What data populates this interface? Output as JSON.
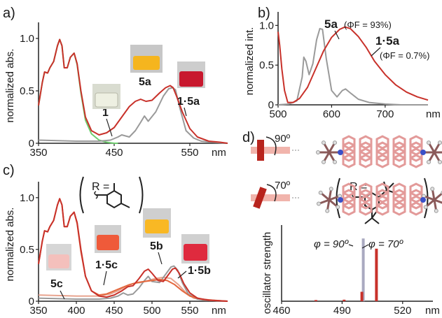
{
  "chart_data": [
    {
      "panel": "a)",
      "type": "line",
      "xlabel": "nm",
      "ylabel": "normalized abs.",
      "xlim": [
        350,
        600
      ],
      "ylim": [
        0,
        1.1
      ],
      "xticks": [
        "350",
        "450",
        "550"
      ],
      "yticks": [
        "0",
        "0.5",
        "1.0"
      ],
      "labels": [
        "1",
        "5a",
        "1·5a"
      ],
      "series": [
        {
          "name": "1",
          "color": "#6dcc6d",
          "x": [
            350,
            355,
            358,
            362,
            365,
            370,
            375,
            378,
            381,
            384,
            388,
            392,
            397,
            401,
            406,
            412,
            420,
            430,
            440,
            450,
            455
          ],
          "y": [
            0.36,
            0.58,
            0.68,
            0.67,
            0.72,
            0.78,
            0.93,
            0.99,
            0.93,
            0.72,
            0.72,
            0.82,
            0.86,
            0.75,
            0.48,
            0.22,
            0.09,
            0.03,
            0.01,
            0.0,
            0.0
          ]
        },
        {
          "name": "5a",
          "color": "#9a9a9a",
          "x": [
            350,
            400,
            430,
            445,
            455,
            460,
            465,
            470,
            478,
            485,
            490,
            495,
            505,
            515,
            522,
            527,
            531,
            537,
            545,
            555,
            565,
            580,
            600
          ],
          "y": [
            0.03,
            0.02,
            0.02,
            0.03,
            0.06,
            0.08,
            0.07,
            0.06,
            0.12,
            0.2,
            0.26,
            0.21,
            0.3,
            0.45,
            0.52,
            0.53,
            0.51,
            0.33,
            0.12,
            0.05,
            0.02,
            0.01,
            0.0
          ]
        },
        {
          "name": "1·5a",
          "color": "#c8312a",
          "x": [
            350,
            355,
            358,
            362,
            365,
            370,
            375,
            378,
            381,
            384,
            388,
            392,
            397,
            401,
            406,
            412,
            420,
            430,
            440,
            450,
            460,
            470,
            478,
            485,
            492,
            500,
            510,
            518,
            524,
            528,
            533,
            540,
            550,
            560,
            575,
            590,
            600
          ],
          "y": [
            0.36,
            0.58,
            0.68,
            0.67,
            0.72,
            0.78,
            0.93,
            0.99,
            0.93,
            0.72,
            0.72,
            0.82,
            0.86,
            0.76,
            0.5,
            0.25,
            0.12,
            0.08,
            0.1,
            0.15,
            0.25,
            0.35,
            0.4,
            0.42,
            0.4,
            0.41,
            0.48,
            0.53,
            0.55,
            0.53,
            0.44,
            0.3,
            0.14,
            0.06,
            0.02,
            0.01,
            0.0
          ]
        }
      ]
    },
    {
      "panel": "b)",
      "type": "line",
      "xlabel": "nm",
      "ylabel": "normalized int.",
      "xlim": [
        500,
        780
      ],
      "ylim": [
        0,
        1.1
      ],
      "xticks": [
        "500",
        "600",
        "700"
      ],
      "yticks": [
        "0",
        "0.5",
        "1.0"
      ],
      "labels": [
        "5a",
        "(ΦF = 93%)",
        "1·5a",
        "(ΦF = 0.7%)"
      ],
      "series": [
        {
          "name": "5a",
          "color": "#9a9a9a",
          "x": [
            500,
            520,
            535,
            545,
            548,
            552,
            558,
            565,
            572,
            578,
            583,
            590,
            600,
            610,
            620,
            626,
            635,
            650,
            670,
            700,
            730,
            760,
            780
          ],
          "y": [
            0.0,
            0.01,
            0.05,
            0.35,
            0.6,
            0.55,
            0.38,
            0.52,
            0.82,
            0.96,
            0.95,
            0.58,
            0.18,
            0.1,
            0.18,
            0.2,
            0.15,
            0.07,
            0.03,
            0.01,
            0.0,
            0.0,
            0.0
          ]
        },
        {
          "name": "1·5a",
          "color": "#c8312a",
          "x": [
            500,
            503,
            507,
            512,
            518,
            528,
            540,
            555,
            570,
            585,
            600,
            615,
            625,
            635,
            650,
            665,
            680,
            700,
            720,
            740,
            760,
            780
          ],
          "y": [
            0.92,
            0.75,
            0.45,
            0.18,
            0.03,
            0.03,
            0.08,
            0.22,
            0.45,
            0.68,
            0.85,
            0.95,
            0.98,
            0.96,
            0.86,
            0.72,
            0.55,
            0.38,
            0.25,
            0.16,
            0.1,
            0.06
          ]
        }
      ]
    },
    {
      "panel": "c)",
      "type": "line",
      "xlabel": "nm",
      "ylabel": "normalized abs.",
      "xlim": [
        350,
        600
      ],
      "ylim": [
        0,
        1.1
      ],
      "xticks": [
        "350",
        "400",
        "450",
        "500",
        "550"
      ],
      "yticks": [
        "0",
        "0.5",
        "1.0"
      ],
      "labels": [
        "5c",
        "1·5c",
        "5b",
        "1·5b"
      ],
      "substituents": [
        "R =",
        "R ="
      ],
      "series": [
        {
          "name": "5c",
          "color": "#e8a38e",
          "x": [
            350,
            400,
            430,
            445,
            455,
            465,
            475,
            485,
            495,
            505,
            515,
            525,
            535,
            545,
            555,
            570,
            600
          ],
          "y": [
            0.06,
            0.05,
            0.05,
            0.07,
            0.1,
            0.14,
            0.17,
            0.18,
            0.2,
            0.22,
            0.23,
            0.22,
            0.16,
            0.08,
            0.03,
            0.01,
            0.0
          ]
        },
        {
          "name": "5b",
          "color": "#9a9a9a",
          "x": [
            350,
            400,
            430,
            445,
            455,
            462,
            468,
            475,
            483,
            490,
            495,
            500,
            510,
            520,
            525,
            529,
            534,
            540,
            548,
            560,
            575,
            600
          ],
          "y": [
            0.03,
            0.02,
            0.02,
            0.03,
            0.05,
            0.08,
            0.06,
            0.07,
            0.13,
            0.2,
            0.24,
            0.19,
            0.18,
            0.28,
            0.33,
            0.34,
            0.3,
            0.18,
            0.07,
            0.02,
            0.01,
            0.0
          ]
        },
        {
          "name": "1·5c",
          "color": "#e4683e",
          "x": [
            350,
            355,
            358,
            362,
            365,
            370,
            375,
            378,
            381,
            384,
            388,
            392,
            397,
            401,
            406,
            412,
            420,
            430,
            440,
            450,
            460,
            470,
            480,
            490,
            500,
            510,
            520,
            530,
            540,
            550,
            565,
            580,
            600
          ],
          "y": [
            0.36,
            0.58,
            0.68,
            0.67,
            0.72,
            0.78,
            0.93,
            0.99,
            0.93,
            0.72,
            0.72,
            0.82,
            0.86,
            0.75,
            0.48,
            0.24,
            0.1,
            0.06,
            0.07,
            0.1,
            0.13,
            0.16,
            0.18,
            0.19,
            0.2,
            0.21,
            0.2,
            0.16,
            0.1,
            0.05,
            0.02,
            0.01,
            0.0
          ]
        },
        {
          "name": "1·5b",
          "color": "#c8312a",
          "x": [
            350,
            355,
            358,
            362,
            365,
            370,
            375,
            378,
            381,
            384,
            388,
            392,
            397,
            401,
            406,
            412,
            420,
            430,
            440,
            450,
            460,
            468,
            475,
            483,
            490,
            495,
            500,
            508,
            515,
            522,
            527,
            531,
            536,
            542,
            550,
            560,
            575,
            600
          ],
          "y": [
            0.36,
            0.58,
            0.68,
            0.67,
            0.72,
            0.78,
            0.93,
            0.99,
            0.93,
            0.72,
            0.72,
            0.82,
            0.86,
            0.76,
            0.5,
            0.24,
            0.1,
            0.05,
            0.04,
            0.06,
            0.1,
            0.14,
            0.15,
            0.22,
            0.29,
            0.31,
            0.27,
            0.2,
            0.19,
            0.26,
            0.31,
            0.32,
            0.27,
            0.17,
            0.08,
            0.03,
            0.01,
            0.0
          ]
        }
      ]
    },
    {
      "panel": "d)",
      "type": "bar",
      "xlabel": "nm",
      "ylabel": "oscillator strength",
      "xlim": [
        460,
        535
      ],
      "ylim": [
        0,
        0.9
      ],
      "xticks": [
        "460",
        "490",
        "520"
      ],
      "labels": [
        "φ = 90º",
        "φ = 70º"
      ],
      "angle_labels": [
        "90º",
        "70º"
      ],
      "series": [
        {
          "name": "φ = 90º",
          "color": "#a9a9c0",
          "x": [
            477,
            500.5
          ],
          "values": [
            0.012,
            0.8
          ]
        },
        {
          "name": "φ = 70º",
          "color": "#c8312a",
          "x": [
            477,
            491,
            499.8,
            507
          ],
          "values": [
            0.015,
            0.02,
            0.12,
            0.67
          ]
        }
      ]
    }
  ]
}
